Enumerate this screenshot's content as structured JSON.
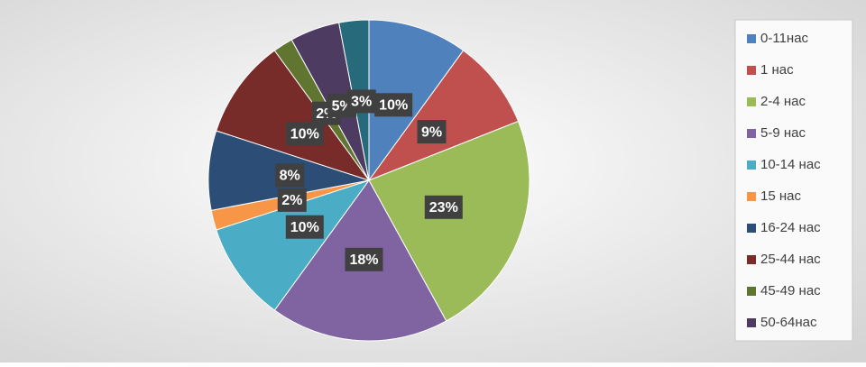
{
  "chart_data": {
    "type": "pie",
    "categories": [
      "0-11нас",
      "1 нас",
      "2-4 нас",
      "5-9 нас",
      "10-14 нас",
      "15 нас",
      "16-24 нас",
      "25-44 нас",
      "45-49 нас",
      "50-64нас",
      null
    ],
    "values": [
      10,
      9,
      23,
      18,
      10,
      2,
      8,
      10,
      2,
      5,
      3
    ],
    "value_labels": [
      "10%",
      "9%",
      "23%",
      "18%",
      "10%",
      "2%",
      "8%",
      "10%",
      "2%",
      "5%",
      "3%"
    ],
    "colors": [
      "#4f81bd",
      "#c0504d",
      "#9bbb59",
      "#8064a2",
      "#4bacc6",
      "#f79646",
      "#2c4d75",
      "#772c2a",
      "#5f7530",
      "#4d3b62",
      "#276a7c"
    ],
    "legend": "right"
  }
}
